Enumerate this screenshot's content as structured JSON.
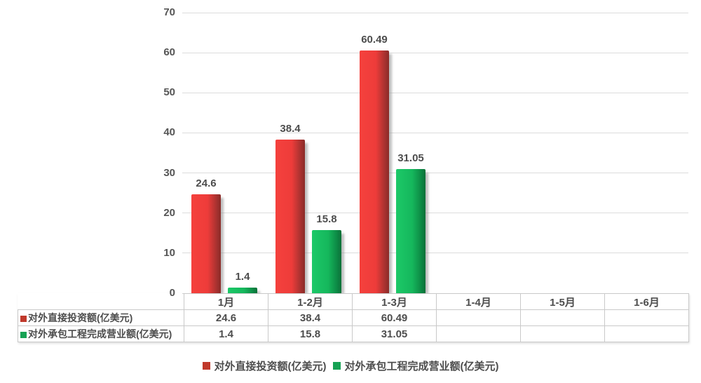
{
  "chart_data": {
    "type": "bar",
    "title": "",
    "categories": [
      "1月",
      "1-2月",
      "1-3月",
      "1-4月",
      "1-5月",
      "1-6月"
    ],
    "series": [
      {
        "name": "对外直接投资额(亿美元)",
        "values": [
          24.6,
          38.4,
          60.49,
          null,
          null,
          null
        ],
        "labels": [
          "24.6",
          "38.4",
          "60.49",
          "",
          "",
          ""
        ],
        "color": "#c0392b"
      },
      {
        "name": "对外承包工程完成营业额(亿美元)",
        "values": [
          1.4,
          15.8,
          31.05,
          null,
          null,
          null
        ],
        "labels": [
          "1.4",
          "15.8",
          "31.05",
          "",
          "",
          ""
        ],
        "color": "#16a254"
      }
    ],
    "xlabel": "",
    "ylabel": "",
    "ylim": [
      0,
      70
    ],
    "y_ticks": [
      "0",
      "10",
      "20",
      "30",
      "40",
      "50",
      "60",
      "70"
    ],
    "grid": "horizontal",
    "legend_position": "bottom"
  },
  "table": {
    "header": [
      "1月",
      "1-2月",
      "1-3月",
      "1-4月",
      "1-5月",
      "1-6月"
    ],
    "rows": [
      {
        "label": "对外直接投资额(亿美元)",
        "marker_color": "#c0392b",
        "values": [
          "24.6",
          "38.4",
          "60.49",
          "",
          "",
          ""
        ]
      },
      {
        "label": "对外承包工程完成营业额(亿美元)",
        "marker_color": "#16a254",
        "values": [
          "1.4",
          "15.8",
          "31.05",
          "",
          "",
          ""
        ]
      }
    ]
  },
  "legend": {
    "items": [
      {
        "label": "对外直接投资额(亿美元)",
        "color": "#c0392b"
      },
      {
        "label": "对外承包工程完成营业额(亿美元)",
        "color": "#16a254"
      }
    ]
  },
  "colors": {
    "series1_gradient_start": "#f5413d",
    "series1_gradient_end": "#8a2b28",
    "series2_gradient_start": "#1cc968",
    "series2_gradient_end": "#0a7038",
    "gridline": "#dcdcdc",
    "table_border": "#c9c9c9",
    "text": "#4d4d4d"
  }
}
